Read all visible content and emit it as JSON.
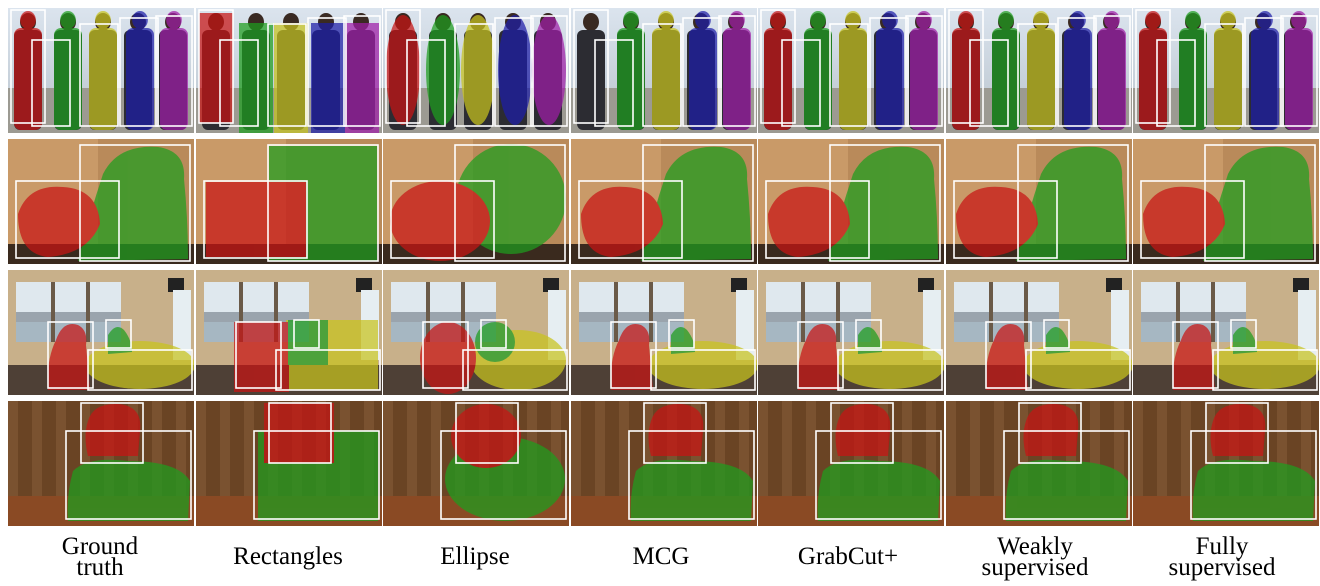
{
  "columns": [
    {
      "key": "gt",
      "label_lines": [
        "Ground",
        "truth"
      ]
    },
    {
      "key": "rect",
      "label_lines": [
        "Rectangles"
      ]
    },
    {
      "key": "ellipse",
      "label_lines": [
        "Ellipse"
      ]
    },
    {
      "key": "mcg",
      "label_lines": [
        "MCG"
      ]
    },
    {
      "key": "grabcut",
      "label_lines": [
        "GrabCut+"
      ]
    },
    {
      "key": "weak",
      "label_lines": [
        "Weakly",
        "supervised"
      ]
    },
    {
      "key": "full",
      "label_lines": [
        "Fully",
        "supervised"
      ]
    }
  ],
  "rows": [
    {
      "key": "people",
      "scene": "outdoor-people"
    },
    {
      "key": "dogs",
      "scene": "dog-portrait"
    },
    {
      "key": "cabin",
      "scene": "boat-cabin"
    },
    {
      "key": "kid-dog",
      "scene": "child-with-dog"
    }
  ],
  "colors": {
    "red": "#c81414",
    "green": "#1e9e1e",
    "yellow": "#c8c41e",
    "blue": "#1e1ea8",
    "purple": "#a01ea8",
    "box": "#ffffff"
  }
}
